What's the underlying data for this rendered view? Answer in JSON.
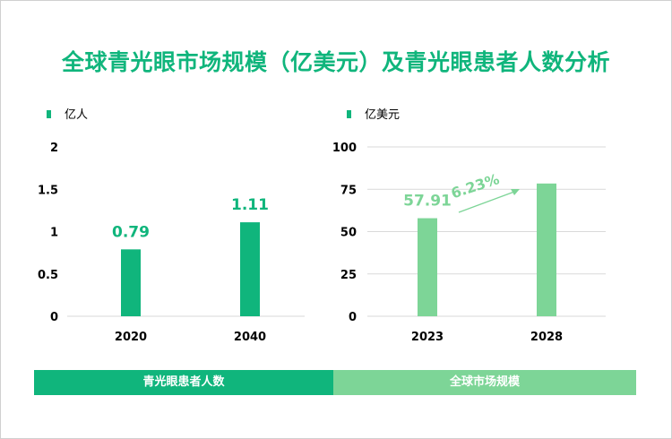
{
  "title": "全球青光眼市场规模（亿美元）及青光眼患者人数分析",
  "chart_data": [
    {
      "type": "bar",
      "legend": "亿人",
      "categories": [
        "2020",
        "2040"
      ],
      "values": [
        0.79,
        1.11
      ],
      "data_labels": [
        "0.79",
        "1.11"
      ],
      "ylim": [
        0,
        2
      ],
      "yticks": [
        "0",
        "0.5",
        "1",
        "1.5",
        "2"
      ],
      "ytick_values": [
        0,
        0.5,
        1,
        1.5,
        2
      ],
      "grid": false,
      "color": "#10b57c",
      "caption": "青光眼患者人数"
    },
    {
      "type": "bar",
      "legend": "亿美元",
      "categories": [
        "2023",
        "2028"
      ],
      "values": [
        57.91,
        78.4
      ],
      "data_labels": [
        "57.91",
        ""
      ],
      "ylim": [
        0,
        100
      ],
      "yticks": [
        "0",
        "25",
        "50",
        "75",
        "100"
      ],
      "ytick_values": [
        0,
        25,
        50,
        75,
        100
      ],
      "grid": true,
      "color": "#7dd597",
      "annotation": "6.23%",
      "caption": "全球市场规模"
    }
  ]
}
